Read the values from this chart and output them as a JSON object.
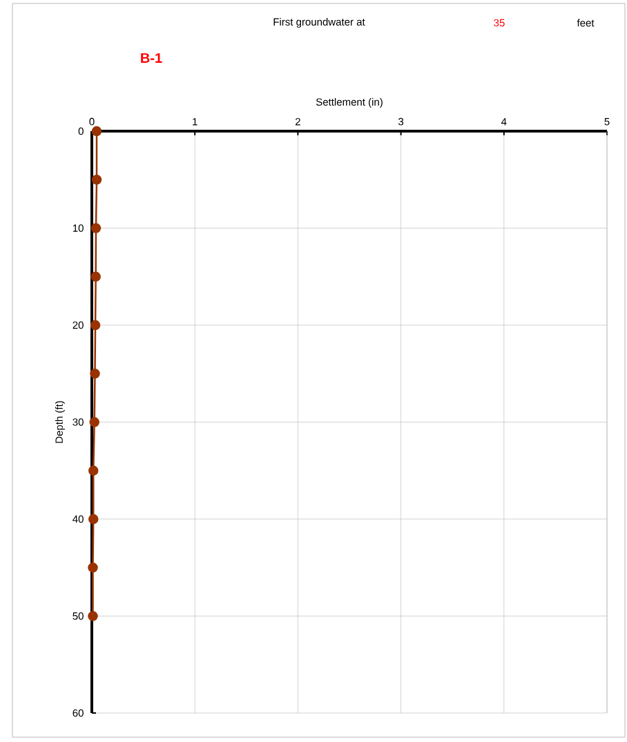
{
  "chart_data": {
    "type": "line",
    "title": "B-1",
    "xlabel": "Settlement (in)",
    "ylabel": "Depth (ft)",
    "annotations": [
      "First groundwater at",
      "35",
      "feet"
    ],
    "series": [
      {
        "color": "#993300",
        "x": [
          0.047,
          0.047,
          0.04,
          0.038,
          0.034,
          0.03,
          0.025,
          0.015,
          0.015,
          0.01,
          0.01
        ],
        "values": [
          0,
          5,
          10,
          15,
          20,
          25,
          30,
          35,
          40,
          45,
          50
        ]
      }
    ],
    "xlim": [
      0,
      5
    ],
    "ylim": [
      60,
      0
    ],
    "xticks": [
      0,
      1,
      2,
      3,
      4,
      5
    ],
    "yticks": [
      0,
      10,
      20,
      30,
      40,
      50,
      60
    ],
    "grid": true,
    "marker": "circle",
    "line_style": "solid"
  }
}
